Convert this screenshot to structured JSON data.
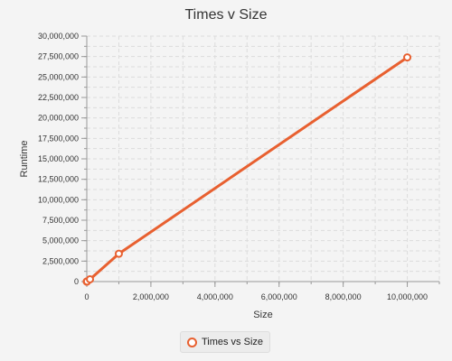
{
  "chart_data": {
    "type": "line",
    "title": "Times v Size",
    "xlabel": "Size",
    "ylabel": "Runtime",
    "xlim": [
      0,
      11000000
    ],
    "ylim": [
      0,
      30000000
    ],
    "x_ticks": [
      0,
      2000000,
      4000000,
      6000000,
      8000000,
      10000000
    ],
    "x_tick_labels": [
      "0",
      "2,000,000",
      "4,000,000",
      "6,000,000",
      "8,000,000",
      "10,000,000"
    ],
    "y_ticks": [
      0,
      2500000,
      5000000,
      7500000,
      10000000,
      12500000,
      15000000,
      17500000,
      20000000,
      22500000,
      25000000,
      27500000,
      30000000
    ],
    "y_tick_labels": [
      "0",
      "2,500,000",
      "5,000,000",
      "7,500,000",
      "10,000,000",
      "12,500,000",
      "15,000,000",
      "17,500,000",
      "20,000,000",
      "22,500,000",
      "25,000,000",
      "27,500,000",
      "30,000,000"
    ],
    "grid": true,
    "legend_position": "bottom",
    "series": [
      {
        "name": "Times vs Size",
        "color": "#e86030",
        "x": [
          10,
          100,
          1000,
          10000,
          100000,
          1000000,
          10000000
        ],
        "y": [
          50,
          300,
          2000,
          20000,
          280000,
          3400000,
          27400000
        ]
      }
    ]
  }
}
